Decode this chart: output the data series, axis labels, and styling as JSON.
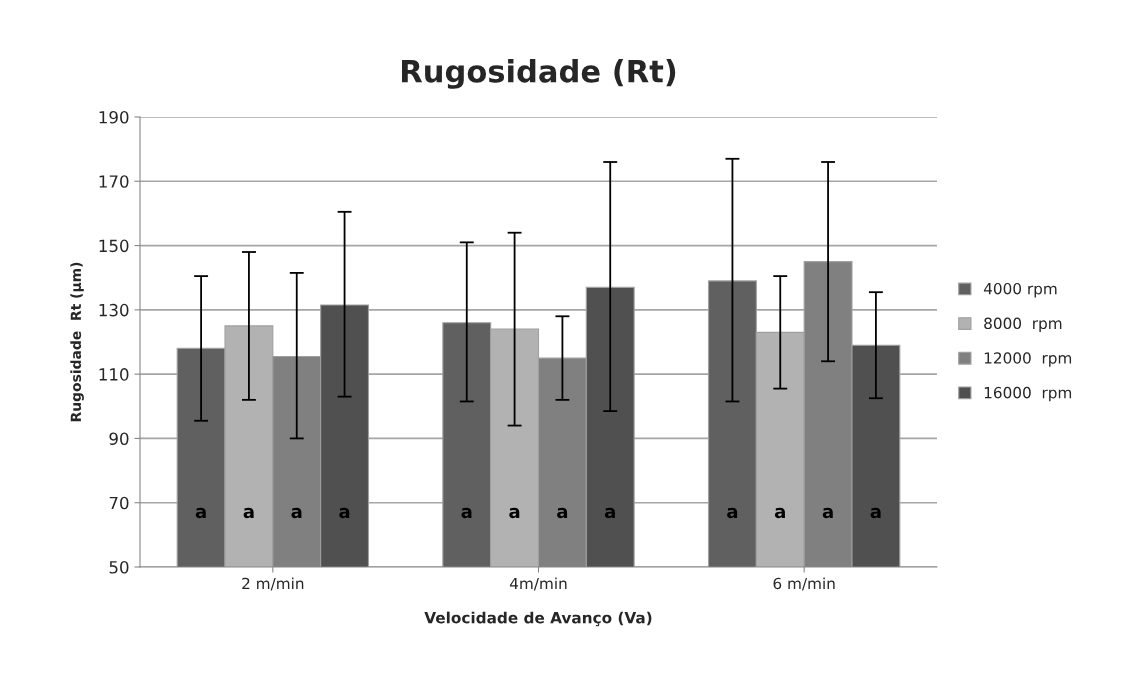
{
  "chart_data": {
    "type": "bar",
    "title": "Rugosidade (Rt)",
    "xlabel": "Velocidade de Avanço (Va)",
    "ylabel": "Rugosidade  Rt (µm)",
    "categories": [
      "2 m/min",
      "4m/min",
      "6 m/min"
    ],
    "ylim": [
      50,
      190
    ],
    "yticks": [
      50,
      70,
      90,
      110,
      130,
      150,
      170,
      190
    ],
    "grid": "y",
    "legend": "right",
    "series": [
      {
        "name": "4000 rpm",
        "color": "#606060",
        "values": [
          118,
          126,
          139
        ],
        "errors": [
          [
            95.5,
            140.5
          ],
          [
            101.5,
            151
          ],
          [
            101.5,
            177
          ]
        ],
        "value_labels": [
          "a",
          "a",
          "a"
        ]
      },
      {
        "name": "8000  rpm",
        "color": "#b2b2b2",
        "values": [
          125,
          124,
          123
        ],
        "errors": [
          [
            102,
            148
          ],
          [
            94,
            154
          ],
          [
            105.5,
            140.5
          ]
        ],
        "value_labels": [
          "a",
          "a",
          "a"
        ]
      },
      {
        "name": "12000  rpm",
        "color": "#808080",
        "values": [
          115.5,
          115,
          145
        ],
        "errors": [
          [
            90,
            141.5
          ],
          [
            102,
            128
          ],
          [
            114,
            176
          ]
        ],
        "value_labels": [
          "a",
          "a",
          "a"
        ]
      },
      {
        "name": "16000  rpm",
        "color": "#505050",
        "values": [
          131.5,
          137,
          119
        ],
        "errors": [
          [
            103,
            160.5
          ],
          [
            98.5,
            176
          ],
          [
            102.5,
            135.5
          ]
        ],
        "value_labels": [
          "a",
          "a",
          "a"
        ]
      }
    ]
  }
}
